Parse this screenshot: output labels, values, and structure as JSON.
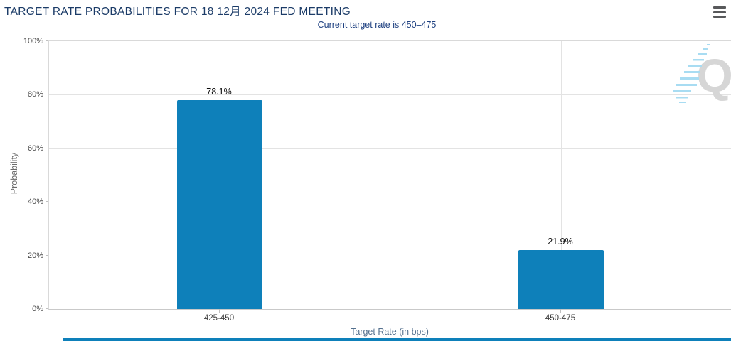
{
  "header": {
    "title": "TARGET RATE PROBABILITIES FOR 18 12月 2024 FED MEETING"
  },
  "subtitle": "Current target rate is 450–475",
  "menu": {
    "icon": "hamburger-icon"
  },
  "watermark": {
    "letter": "Q"
  },
  "colors": {
    "bar": "#0e80ba",
    "title": "#1c3c68",
    "subtitle": "#1e4080",
    "gridline": "#e3e3e3",
    "accent_strip": "#0e80ba"
  },
  "chart_data": {
    "type": "bar",
    "title": "TARGET RATE PROBABILITIES FOR 18 12月 2024 FED MEETING",
    "subtitle": "Current target rate is 450–475",
    "categories": [
      "425-450",
      "450-475"
    ],
    "values": [
      78.1,
      21.9
    ],
    "value_labels": [
      "78.1%",
      "21.9%"
    ],
    "xlabel": "Target Rate (in bps)",
    "ylabel": "Probability",
    "ylim": [
      0,
      100
    ],
    "ytick_step": 20,
    "ytick_labels": [
      "0%",
      "20%",
      "40%",
      "60%",
      "80%",
      "100%"
    ],
    "grid": true,
    "legend_position": "none",
    "bar_color": "#0e80ba"
  }
}
